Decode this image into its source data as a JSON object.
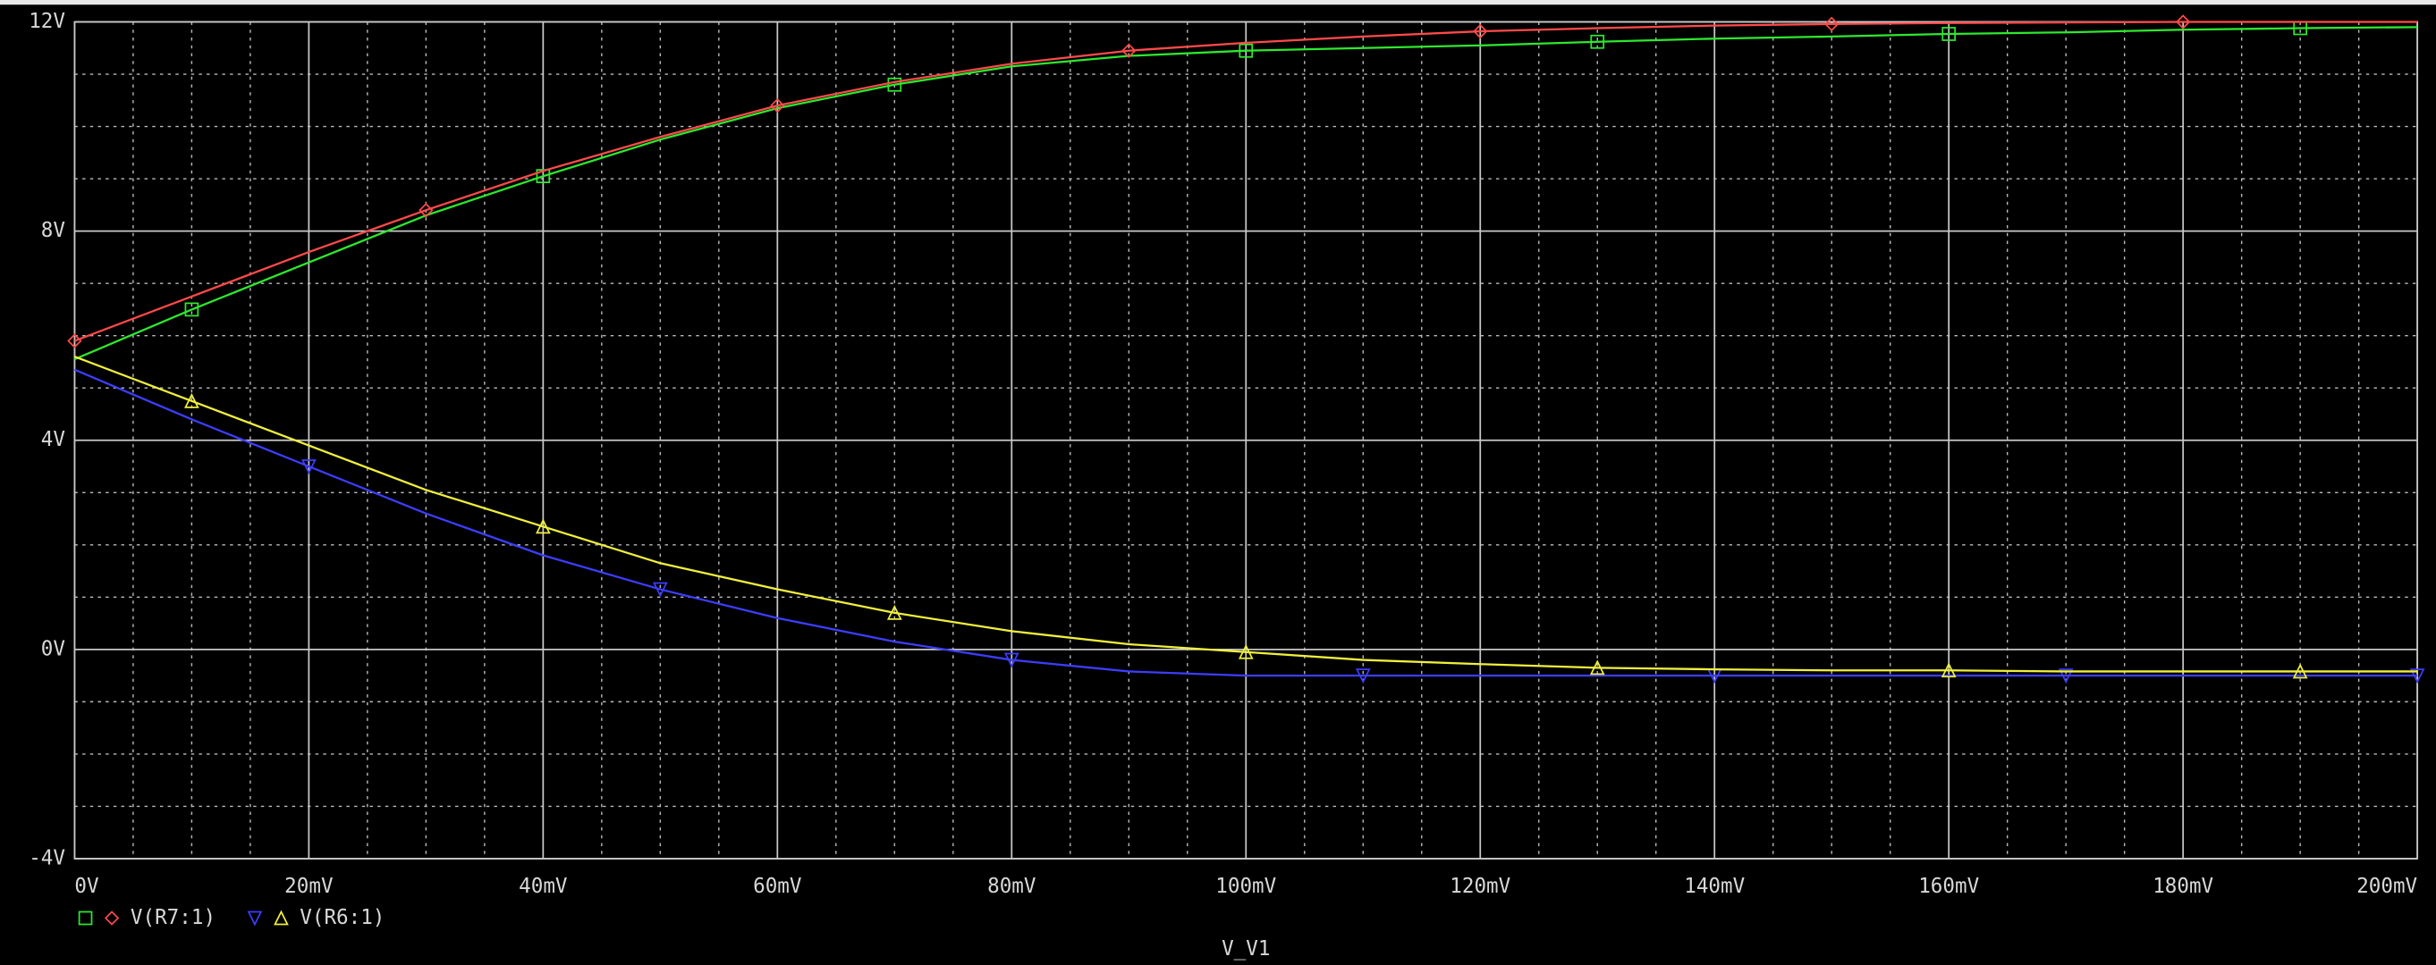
{
  "chart_data": {
    "type": "line",
    "x": [
      0,
      10,
      20,
      30,
      40,
      50,
      60,
      70,
      80,
      90,
      100,
      110,
      120,
      130,
      140,
      150,
      160,
      170,
      180,
      190,
      200
    ],
    "series": [
      {
        "name": "V(R7:1)",
        "color": "#2ee82e",
        "marker": "square",
        "values": [
          5.55,
          6.5,
          7.4,
          8.3,
          9.05,
          9.75,
          10.35,
          10.8,
          11.15,
          11.35,
          11.45,
          11.5,
          11.55,
          11.62,
          11.68,
          11.72,
          11.77,
          11.8,
          11.85,
          11.88,
          11.9
        ]
      },
      {
        "name": "V(R7:1)",
        "color": "#ff4a4a",
        "marker": "diamond",
        "values": [
          5.9,
          6.75,
          7.6,
          8.4,
          9.15,
          9.8,
          10.4,
          10.85,
          11.2,
          11.45,
          11.6,
          11.72,
          11.82,
          11.88,
          11.93,
          11.96,
          11.98,
          11.99,
          12.0,
          12.0,
          12.0
        ]
      },
      {
        "name": "V(R6:1)",
        "color": "#3d3dff",
        "marker": "triangle-down",
        "values": [
          5.35,
          4.4,
          3.5,
          2.6,
          1.8,
          1.15,
          0.6,
          0.15,
          -0.2,
          -0.42,
          -0.5,
          -0.5,
          -0.5,
          -0.5,
          -0.5,
          -0.5,
          -0.5,
          -0.5,
          -0.5,
          -0.5,
          -0.5
        ]
      },
      {
        "name": "V(R6:1)",
        "color": "#f0f03c",
        "marker": "triangle-up",
        "values": [
          5.6,
          4.75,
          3.9,
          3.05,
          2.35,
          1.65,
          1.15,
          0.7,
          0.35,
          0.1,
          -0.05,
          -0.2,
          -0.28,
          -0.35,
          -0.38,
          -0.4,
          -0.4,
          -0.42,
          -0.42,
          -0.42,
          -0.42
        ]
      }
    ],
    "xlabel": "V_V1",
    "xlim": [
      0,
      200
    ],
    "xticks": [
      {
        "value": 0,
        "label": "0V"
      },
      {
        "value": 20,
        "label": "20mV"
      },
      {
        "value": 40,
        "label": "40mV"
      },
      {
        "value": 60,
        "label": "60mV"
      },
      {
        "value": 80,
        "label": "80mV"
      },
      {
        "value": 100,
        "label": "100mV"
      },
      {
        "value": 120,
        "label": "120mV"
      },
      {
        "value": 140,
        "label": "140mV"
      },
      {
        "value": 160,
        "label": "160mV"
      },
      {
        "value": 180,
        "label": "180mV"
      },
      {
        "value": 200,
        "label": "200mV"
      }
    ],
    "ylim": [
      -4,
      12
    ],
    "yticks": [
      {
        "value": -4,
        "label": "-4V"
      },
      {
        "value": 0,
        "label": "0V"
      },
      {
        "value": 4,
        "label": "4V"
      },
      {
        "value": 8,
        "label": "8V"
      },
      {
        "value": 12,
        "label": "12V"
      }
    ],
    "grid": true,
    "legend": "bottom-left"
  }
}
